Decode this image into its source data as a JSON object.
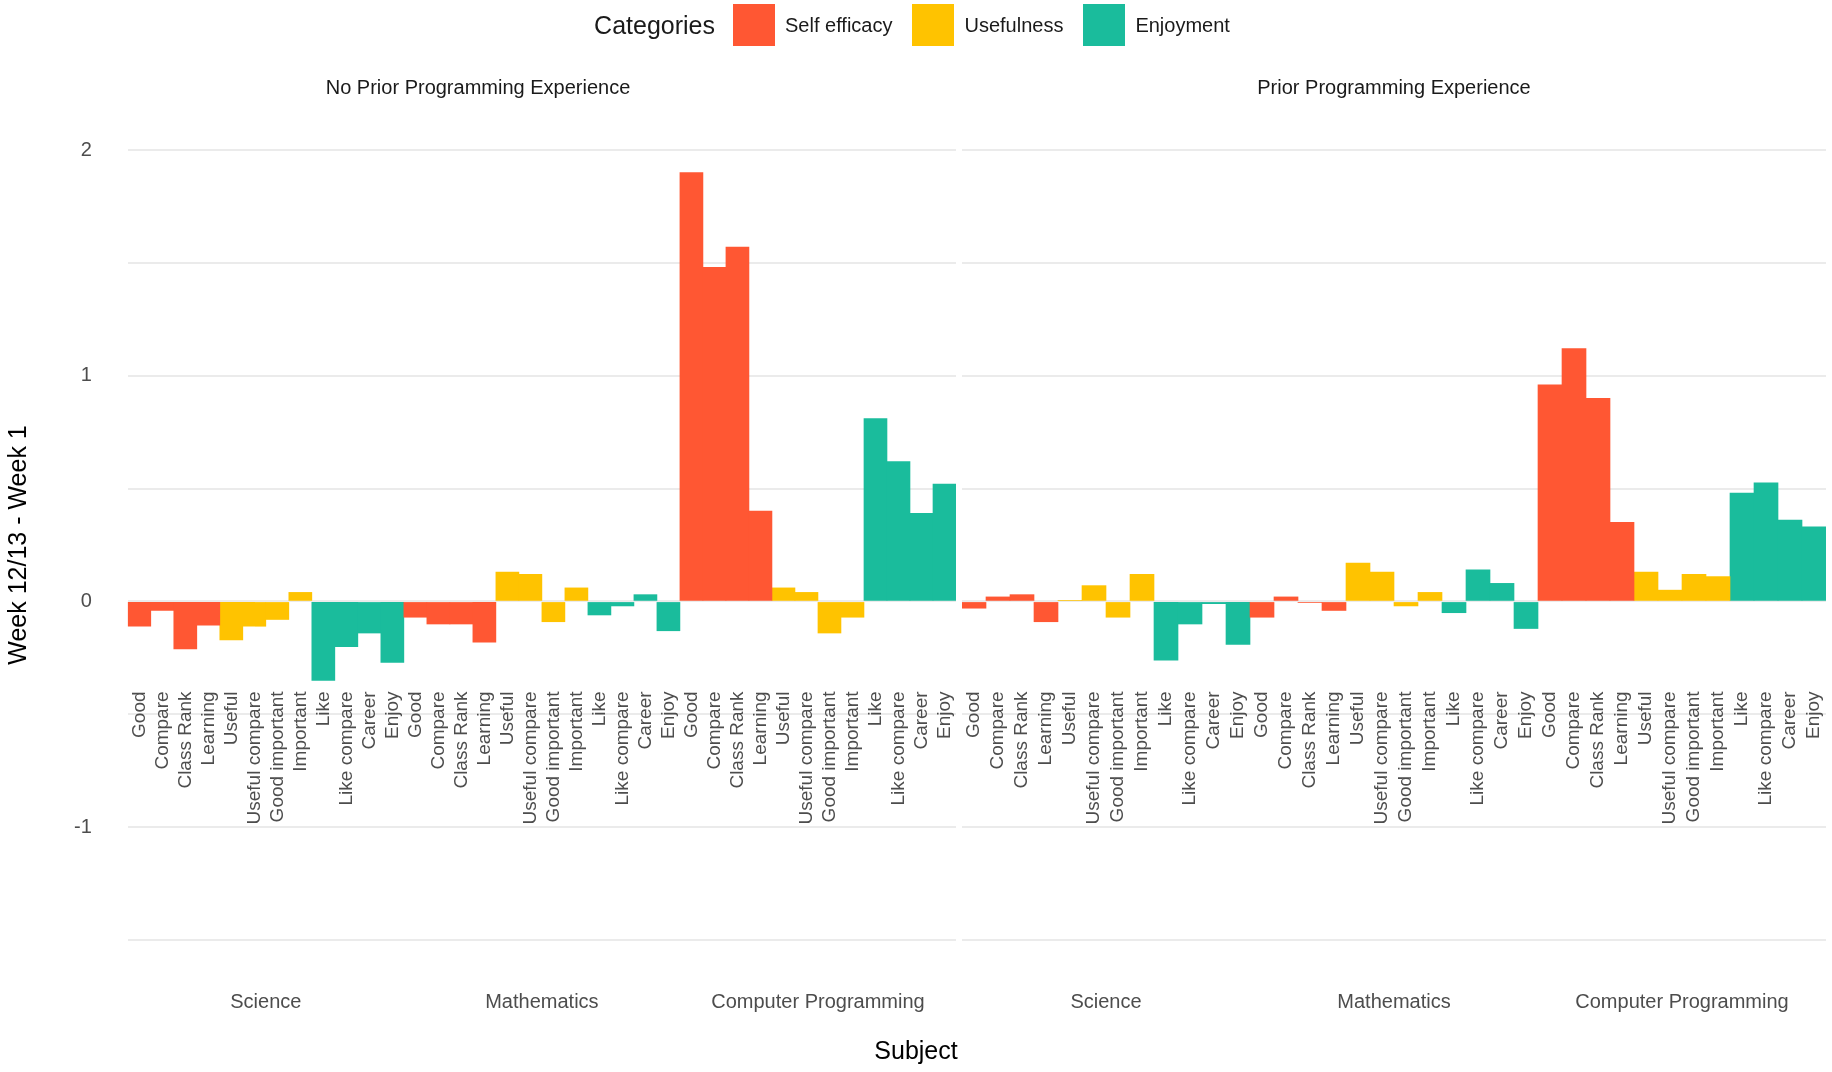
{
  "chart_data": [
    {
      "type": "bar",
      "title": "No Prior Programming Experience",
      "ylabel": "Week 12/13 - Week 1",
      "xlabel": "Subject",
      "legend_title": "Categories",
      "legend": "top",
      "grid": "y",
      "categories": [
        "Good",
        "Compare",
        "Class Rank",
        "Learning",
        "Useful",
        "Useful compare",
        "Good important",
        "Important",
        "Like",
        "Like compare",
        "Career",
        "Enjoy",
        "Good",
        "Compare",
        "Class Rank",
        "Learning",
        "Useful",
        "Useful compare",
        "Good important",
        "Important",
        "Like",
        "Like compare",
        "Career",
        "Enjoy",
        "Good",
        "Compare",
        "Class Rank",
        "Learning",
        "Useful",
        "Useful compare",
        "Good important",
        "Important",
        "Like",
        "Like compare",
        "Career",
        "Enjoy"
      ],
      "annotations": [
        "Science",
        "Mathematics",
        "Computer Programming"
      ],
      "ylim": [
        -1.5,
        2
      ],
      "yticks": [
        {
          "value": -1.5,
          "label": null
        },
        -1,
        {
          "value": -0.5,
          "label": null
        },
        0,
        {
          "value": 0.5,
          "label": null
        },
        1,
        {
          "value": 1.5,
          "label": null
        },
        2
      ],
      "series": [
        {
          "name": "Self efficacy",
          "color": "#ff5733",
          "values": [
            -0.11,
            -0.04,
            -0.21,
            -0.105,
            null,
            null,
            null,
            null,
            null,
            null,
            null,
            null,
            -0.07,
            -0.1,
            -0.1,
            -0.18,
            null,
            null,
            null,
            null,
            null,
            null,
            null,
            null,
            1.9,
            1.48,
            1.57,
            0.4,
            null,
            null,
            null,
            null,
            null,
            null,
            null,
            null
          ]
        },
        {
          "name": "Usefulness",
          "color": "#ffc300",
          "values": [
            null,
            null,
            null,
            null,
            -0.17,
            -0.11,
            -0.08,
            0.04,
            null,
            null,
            null,
            null,
            null,
            null,
            null,
            null,
            0.13,
            0.12,
            -0.09,
            0.06,
            null,
            null,
            null,
            null,
            null,
            null,
            null,
            null,
            0.06,
            0.04,
            -0.14,
            -0.07,
            null,
            null,
            null,
            null
          ]
        },
        {
          "name": "Enjoyment",
          "color": "#1abc9c",
          "values": [
            null,
            null,
            null,
            null,
            null,
            null,
            null,
            null,
            -0.35,
            -0.2,
            -0.14,
            -0.27,
            null,
            null,
            null,
            null,
            null,
            null,
            null,
            null,
            -0.06,
            -0.02,
            0.03,
            -0.13,
            null,
            null,
            null,
            null,
            null,
            null,
            null,
            null,
            0.81,
            0.62,
            0.39,
            0.52
          ]
        }
      ]
    },
    {
      "type": "bar",
      "title": "Prior Programming Experience",
      "grid": "y",
      "tick_labels": "x",
      "categories": [
        "Good",
        "Compare",
        "Class Rank",
        "Learning",
        "Useful",
        "Useful compare",
        "Good important",
        "Important",
        "Like",
        "Like compare",
        "Career",
        "Enjoy",
        "Good",
        "Compare",
        "Class Rank",
        "Learning",
        "Useful",
        "Useful compare",
        "Good important",
        "Important",
        "Like",
        "Like compare",
        "Career",
        "Enjoy",
        "Good",
        "Compare",
        "Class Rank",
        "Learning",
        "Useful",
        "Useful compare",
        "Good important",
        "Important",
        "Like",
        "Like compare",
        "Career",
        "Enjoy"
      ],
      "annotations": [
        "Science",
        "Mathematics",
        "Computer Programming"
      ],
      "ylim": [
        -1.5,
        2
      ],
      "yticks": [
        -1.5,
        -1,
        -0.5,
        0,
        0.5,
        1,
        1.5,
        2
      ],
      "series": [
        {
          "color": "#ff5733",
          "values": [
            -0.03,
            0.02,
            0.03,
            -0.09,
            null,
            null,
            null,
            null,
            null,
            null,
            null,
            null,
            -0.07,
            0.02,
            -0.005,
            -0.04,
            null,
            null,
            null,
            null,
            null,
            null,
            null,
            null,
            0.96,
            1.12,
            0.9,
            0.35,
            null,
            null,
            null,
            null,
            null,
            null,
            null,
            null
          ]
        },
        {
          "color": "#ffc300",
          "values": [
            null,
            null,
            null,
            null,
            0.005,
            0.07,
            -0.07,
            0.12,
            null,
            null,
            null,
            null,
            null,
            null,
            null,
            null,
            0.17,
            0.13,
            -0.02,
            0.04,
            null,
            null,
            null,
            null,
            null,
            null,
            null,
            null,
            0.13,
            0.05,
            0.12,
            0.11,
            null,
            null,
            null,
            null
          ]
        },
        {
          "color": "#1abc9c",
          "values": [
            null,
            null,
            null,
            null,
            null,
            null,
            null,
            null,
            -0.26,
            -0.1,
            -0.01,
            -0.19,
            null,
            null,
            null,
            null,
            null,
            null,
            null,
            null,
            -0.05,
            0.14,
            0.08,
            -0.12,
            null,
            null,
            null,
            null,
            null,
            null,
            null,
            null,
            0.48,
            0.525,
            0.36,
            0.33
          ]
        }
      ]
    }
  ]
}
